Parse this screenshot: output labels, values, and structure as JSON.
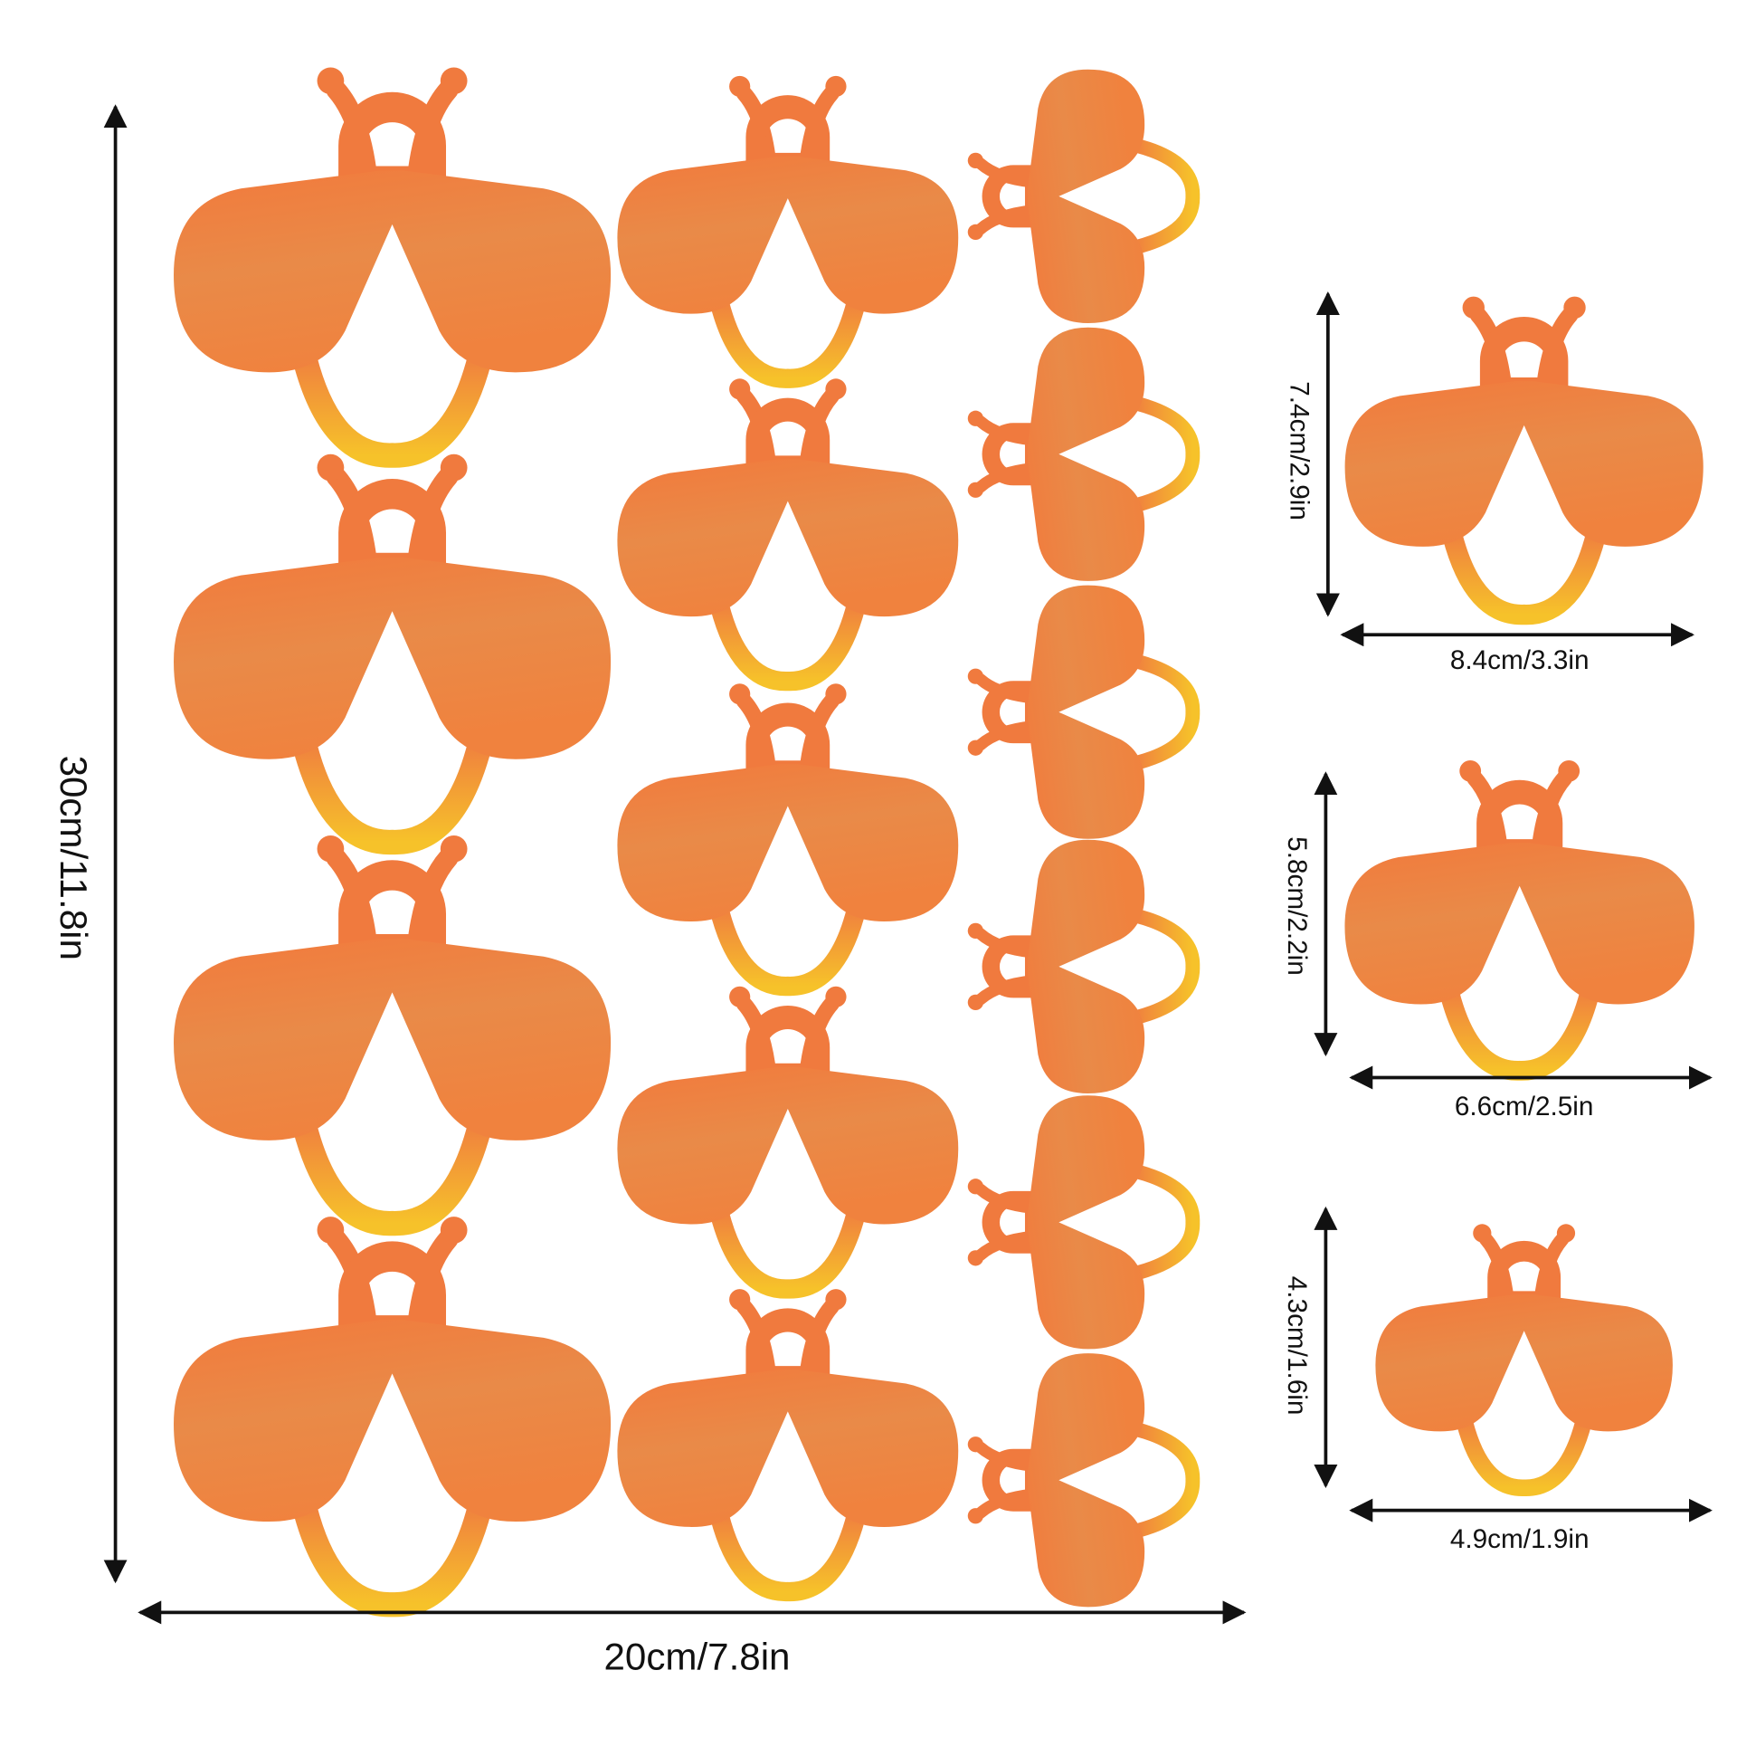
{
  "sheet": {
    "height": "30cm/11.8in",
    "width": "20cm/7.8in"
  },
  "sizes": [
    {
      "height": "7.4cm/2.9in",
      "width": "8.4cm/3.3in"
    },
    {
      "height": "5.8cm/2.2in",
      "width": "6.6cm/2.5in"
    },
    {
      "height": "4.3cm/1.6in",
      "width": "4.9cm/1.9in"
    }
  ]
}
